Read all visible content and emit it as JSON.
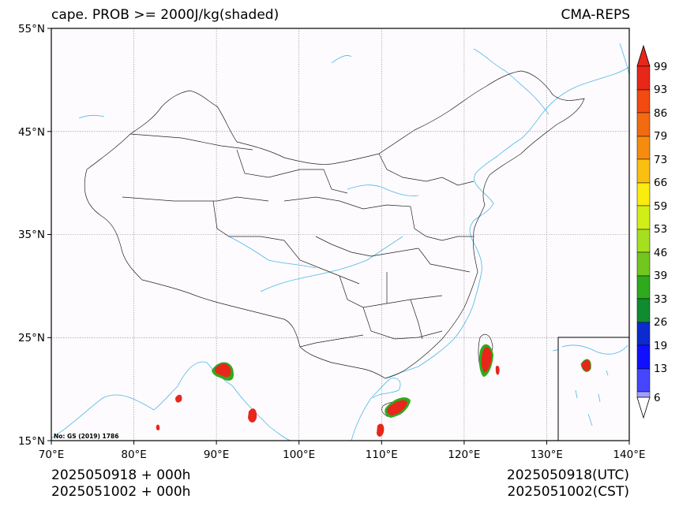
{
  "title_left": "cape. PROB >= 2000J/kg(shaded)",
  "title_right": "CMA-REPS",
  "map": {
    "lon_ticks": [
      "70°E",
      "80°E",
      "90°E",
      "100°E",
      "110°E",
      "120°E",
      "130°E",
      "140°E"
    ],
    "lat_ticks": [
      "55°N",
      "45°N",
      "35°N",
      "25°N",
      "15°N"
    ],
    "extent": {
      "lon": [
        70,
        140
      ],
      "lat": [
        15,
        55
      ]
    },
    "gridlines": true,
    "note": "No: GS (2019) 1786"
  },
  "colorbar": {
    "labels": [
      "99",
      "93",
      "86",
      "79",
      "73",
      "66",
      "59",
      "53",
      "46",
      "39",
      "33",
      "26",
      "19",
      "13",
      "6"
    ],
    "colors": [
      "#e8261a",
      "#f24a10",
      "#f26b10",
      "#f58c0e",
      "#fbbf12",
      "#faeb10",
      "#d2ee18",
      "#a6de20",
      "#73c61e",
      "#2faa1c",
      "#0f8c30",
      "#0b2ad0",
      "#1010ff",
      "#4646ff",
      "#a0a0ff"
    ],
    "extend_top_color": "#e8261a",
    "extend_bottom_color": "#ffffff"
  },
  "footer": {
    "left_line1": "2025050918  +  000h",
    "left_line2": "2025051002  +  000h",
    "right_line1": "2025050918(UTC)",
    "right_line2": "2025051002(CST)"
  }
}
